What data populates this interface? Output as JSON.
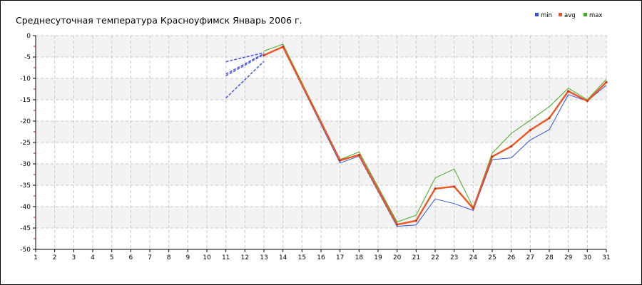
{
  "chart_data": {
    "type": "line",
    "title": "Среднесуточная температура Красноуфимск  Январь 2006 г.",
    "xlabel": "",
    "ylabel": "",
    "xlim": [
      1,
      31
    ],
    "ylim": [
      -50,
      0
    ],
    "x_ticks": [
      1,
      2,
      3,
      4,
      5,
      6,
      7,
      8,
      9,
      10,
      11,
      12,
      13,
      14,
      15,
      16,
      17,
      18,
      19,
      20,
      21,
      22,
      23,
      24,
      25,
      26,
      27,
      28,
      29,
      30,
      31
    ],
    "y_ticks": [
      0,
      -5,
      -10,
      -15,
      -20,
      -25,
      -30,
      -35,
      -40,
      -45,
      -50
    ],
    "grid": true,
    "legend_position": "top-right",
    "colors": {
      "min": "#3355dd",
      "avg": "#ee5522",
      "max": "#44aa22",
      "interp": "#3344dd"
    },
    "series": [
      {
        "name": "min",
        "x": [
          14,
          17,
          18,
          20,
          21,
          22,
          23,
          24,
          25,
          26,
          27,
          28,
          29,
          30,
          31
        ],
        "values": [
          -2.8,
          -29.8,
          -28.2,
          -44.6,
          -44.3,
          -38.2,
          -39.3,
          -40.9,
          -29.0,
          -28.6,
          -24.4,
          -22.0,
          -13.8,
          -15.3,
          -11.6
        ]
      },
      {
        "name": "avg",
        "x": [
          13,
          14,
          17,
          18,
          20,
          21,
          22,
          23,
          24,
          25,
          26,
          27,
          28,
          29,
          30,
          31
        ],
        "values": [
          -4.6,
          -2.6,
          -29.2,
          -27.9,
          -44.2,
          -43.3,
          -35.8,
          -35.3,
          -40.4,
          -28.3,
          -25.9,
          -22.1,
          -19.3,
          -13.0,
          -15.3,
          -10.9
        ]
      },
      {
        "name": "max",
        "x": [
          13,
          14,
          17,
          18,
          20,
          21,
          22,
          23,
          24,
          25,
          26,
          27,
          28,
          29,
          30,
          31
        ],
        "values": [
          -3.6,
          -2.0,
          -29.0,
          -27.2,
          -43.6,
          -42.0,
          -33.3,
          -31.2,
          -40.2,
          -27.5,
          -22.9,
          -19.8,
          -16.6,
          -12.3,
          -15.0,
          -10.2
        ]
      }
    ],
    "interpolated_segments": [
      {
        "x": [
          11,
          13
        ],
        "values": [
          -9.4,
          -4.4
        ]
      },
      {
        "x": [
          11,
          13
        ],
        "values": [
          -14.6,
          -6.0
        ]
      },
      {
        "x": [
          11,
          13
        ],
        "values": [
          -6.1,
          -4.0
        ]
      },
      {
        "x": [
          11,
          13
        ],
        "values": [
          -9.0,
          -4.2
        ]
      },
      {
        "x": [
          14,
          17
        ],
        "values": [
          -2.6,
          -29.4
        ]
      },
      {
        "x": [
          14,
          17
        ],
        "values": [
          -2.3,
          -29.0
        ]
      },
      {
        "x": [
          18,
          20
        ],
        "values": [
          -28.2,
          -44.6
        ]
      },
      {
        "x": [
          18,
          20
        ],
        "values": [
          -27.7,
          -44.0
        ]
      }
    ]
  }
}
